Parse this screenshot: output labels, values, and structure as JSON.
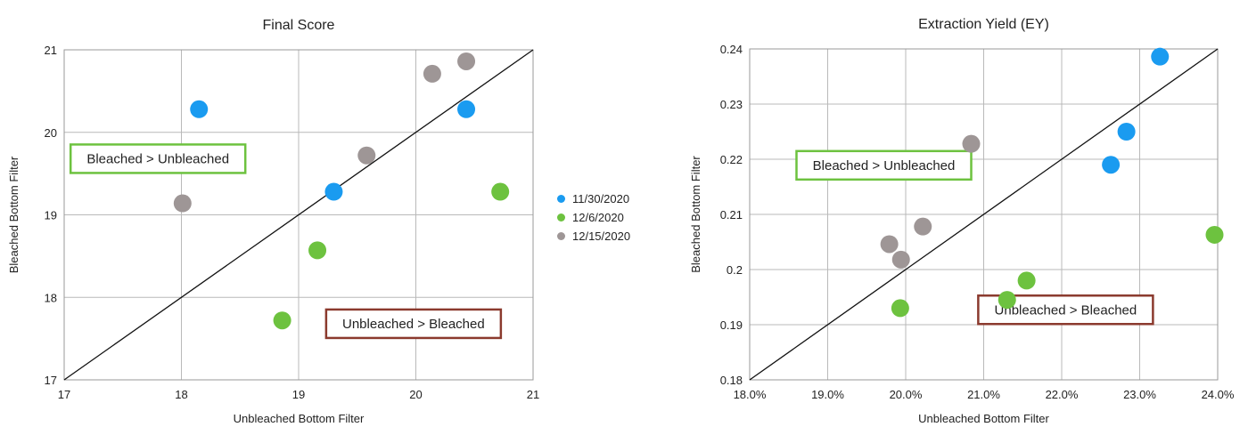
{
  "legend": [
    {
      "name": "11/30/2020",
      "color": "#1a9bf0"
    },
    {
      "name": "12/6/2020",
      "color": "#6dc23f"
    },
    {
      "name": "12/15/2020",
      "color": "#9e9696"
    }
  ],
  "chart_data": [
    {
      "type": "scatter",
      "title": "Final Score",
      "xlabel": "Unbleached Bottom Filter",
      "ylabel": "Bleached Bottom Filter",
      "xlim": [
        17,
        21
      ],
      "ylim": [
        17,
        21
      ],
      "x_ticks": [
        "17",
        "18",
        "19",
        "20",
        "21"
      ],
      "y_ticks": [
        "17",
        "18",
        "19",
        "20",
        "21"
      ],
      "grid": true,
      "legend_position": "right",
      "reference_line": "y = x",
      "annotations": [
        {
          "text": "Bleached > Unbleached",
          "color": "#6dc23f",
          "at": [
            17.8,
            19.68
          ]
        },
        {
          "text": "Unbleached > Bleached",
          "color": "#8b3a2e",
          "at": [
            19.98,
            17.68
          ]
        }
      ],
      "series": [
        {
          "name": "11/30/2020",
          "color": "#1a9bf0",
          "points": [
            [
              18.15,
              20.28
            ],
            [
              19.3,
              19.28
            ],
            [
              20.43,
              20.28
            ]
          ]
        },
        {
          "name": "12/6/2020",
          "color": "#6dc23f",
          "points": [
            [
              18.86,
              17.72
            ],
            [
              19.16,
              18.57
            ],
            [
              20.72,
              19.28
            ]
          ]
        },
        {
          "name": "12/15/2020",
          "color": "#9e9696",
          "points": [
            [
              18.01,
              19.14
            ],
            [
              19.58,
              19.72
            ],
            [
              20.14,
              20.71
            ],
            [
              20.43,
              20.86
            ]
          ]
        }
      ]
    },
    {
      "type": "scatter",
      "title": "Extraction Yield (EY)",
      "xlabel": "Unbleached Bottom Filter",
      "ylabel": "Bleached Bottom Filter",
      "xlim": [
        0.18,
        0.24
      ],
      "ylim": [
        0.18,
        0.24
      ],
      "x_ticks": [
        "18.0%",
        "19.0%",
        "20.0%",
        "21.0%",
        "22.0%",
        "23.0%",
        "24.0%"
      ],
      "y_ticks": [
        "0.18",
        "0.19",
        "0.2",
        "0.21",
        "0.22",
        "0.23",
        "0.24"
      ],
      "grid": true,
      "reference_line": "y = x",
      "annotations": [
        {
          "text": "Bleached > Unbleached",
          "color": "#6dc23f",
          "at": [
            0.1972,
            0.2189
          ]
        },
        {
          "text": "Unbleached > Bleached",
          "color": "#8b3a2e",
          "at": [
            0.2205,
            0.1927
          ]
        }
      ],
      "series": [
        {
          "name": "11/30/2020",
          "color": "#1a9bf0",
          "points": [
            [
              0.2263,
              0.219
            ],
            [
              0.2283,
              0.225
            ],
            [
              0.2326,
              0.2386
            ]
          ]
        },
        {
          "name": "12/6/2020",
          "color": "#6dc23f",
          "points": [
            [
              0.1993,
              0.193
            ],
            [
              0.213,
              0.1945
            ],
            [
              0.2155,
              0.198
            ],
            [
              0.2396,
              0.2063
            ]
          ]
        },
        {
          "name": "12/15/2020",
          "color": "#9e9696",
          "points": [
            [
              0.1979,
              0.2046
            ],
            [
              0.1994,
              0.2018
            ],
            [
              0.2022,
              0.2078
            ],
            [
              0.2084,
              0.2228
            ]
          ]
        }
      ]
    }
  ]
}
